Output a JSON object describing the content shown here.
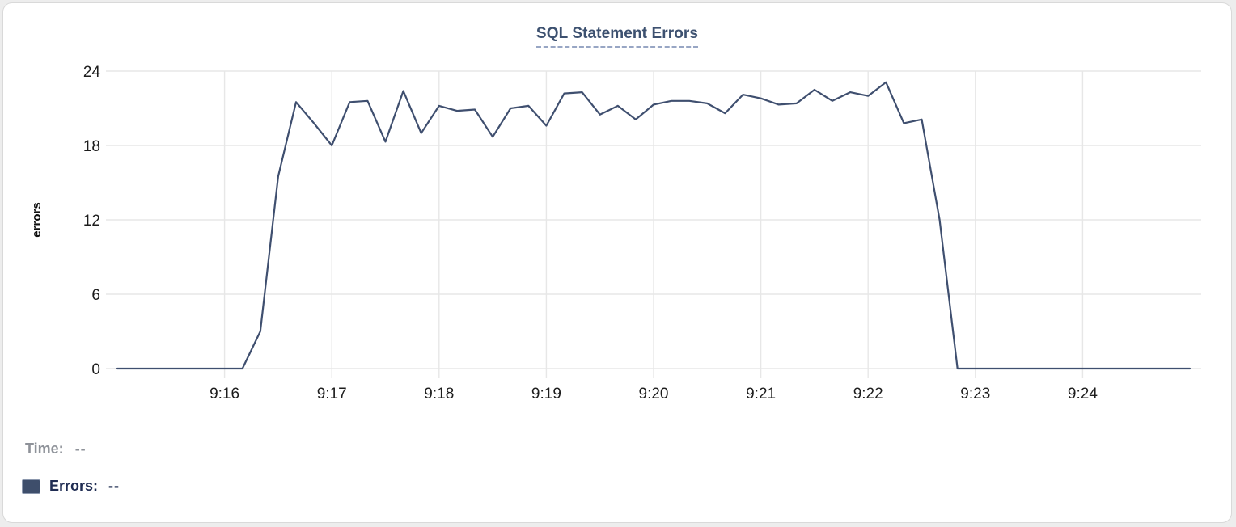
{
  "title": {
    "text": "SQL Statement Errors"
  },
  "chart_data": {
    "type": "line",
    "title": "SQL Statement Errors",
    "xlabel": "",
    "ylabel": "errors",
    "ylim": [
      0,
      24
    ],
    "yticks": [
      0,
      6,
      12,
      18,
      24
    ],
    "xticks": [
      "9:16",
      "9:17",
      "9:18",
      "9:19",
      "9:20",
      "9:21",
      "9:22",
      "9:23",
      "9:24"
    ],
    "xlim": [
      "9:15:00",
      "9:25:00"
    ],
    "grid": true,
    "legend_position": "bottom-left",
    "series": [
      {
        "name": "Errors",
        "color": "#3f4f6f",
        "x": [
          "9:15:00",
          "9:15:10",
          "9:15:20",
          "9:15:30",
          "9:15:40",
          "9:15:50",
          "9:16:00",
          "9:16:10",
          "9:16:20",
          "9:16:30",
          "9:16:40",
          "9:16:50",
          "9:17:00",
          "9:17:10",
          "9:17:20",
          "9:17:30",
          "9:17:40",
          "9:17:50",
          "9:18:00",
          "9:18:10",
          "9:18:20",
          "9:18:30",
          "9:18:40",
          "9:18:50",
          "9:19:00",
          "9:19:10",
          "9:19:20",
          "9:19:30",
          "9:19:40",
          "9:19:50",
          "9:20:00",
          "9:20:10",
          "9:20:20",
          "9:20:30",
          "9:20:40",
          "9:20:50",
          "9:21:00",
          "9:21:10",
          "9:21:20",
          "9:21:30",
          "9:21:40",
          "9:21:50",
          "9:22:00",
          "9:22:10",
          "9:22:20",
          "9:22:30",
          "9:22:40",
          "9:22:50",
          "9:23:00",
          "9:23:10",
          "9:23:20",
          "9:23:30",
          "9:23:40",
          "9:23:50",
          "9:24:00",
          "9:24:10",
          "9:24:20",
          "9:24:30",
          "9:24:40",
          "9:24:50",
          "9:25:00"
        ],
        "values": [
          0,
          0,
          0,
          0,
          0,
          0,
          0,
          0,
          3,
          15.5,
          21.5,
          19.8,
          18,
          21.5,
          21.6,
          18.3,
          22.4,
          19,
          21.2,
          20.8,
          20.9,
          18.7,
          21,
          21.2,
          19.6,
          22.2,
          22.3,
          20.5,
          21.2,
          20.1,
          21.3,
          21.6,
          21.6,
          21.4,
          20.6,
          22.1,
          21.8,
          21.3,
          21.4,
          22.5,
          21.6,
          22.3,
          22,
          23.1,
          19.8,
          20.1,
          12,
          0,
          0,
          0,
          0,
          0,
          0,
          0,
          0,
          0,
          0,
          0,
          0,
          0,
          0
        ]
      }
    ]
  },
  "legend": {
    "time_label": "Time:",
    "time_value": "--",
    "errors_label": "Errors:",
    "errors_value": "--",
    "errors_swatch_color": "#3e4e6b"
  },
  "colors": {
    "line": "#3f4f6f",
    "title_text": "#3d5170",
    "title_underline": "#98a6c4",
    "grid": "#e7e7e7",
    "axis_text": "#1c1c1c",
    "legend_time_text": "#8e9299",
    "legend_errors_text": "#1f2c52",
    "card_border": "#d9d9d9",
    "background": "#ffffff"
  }
}
